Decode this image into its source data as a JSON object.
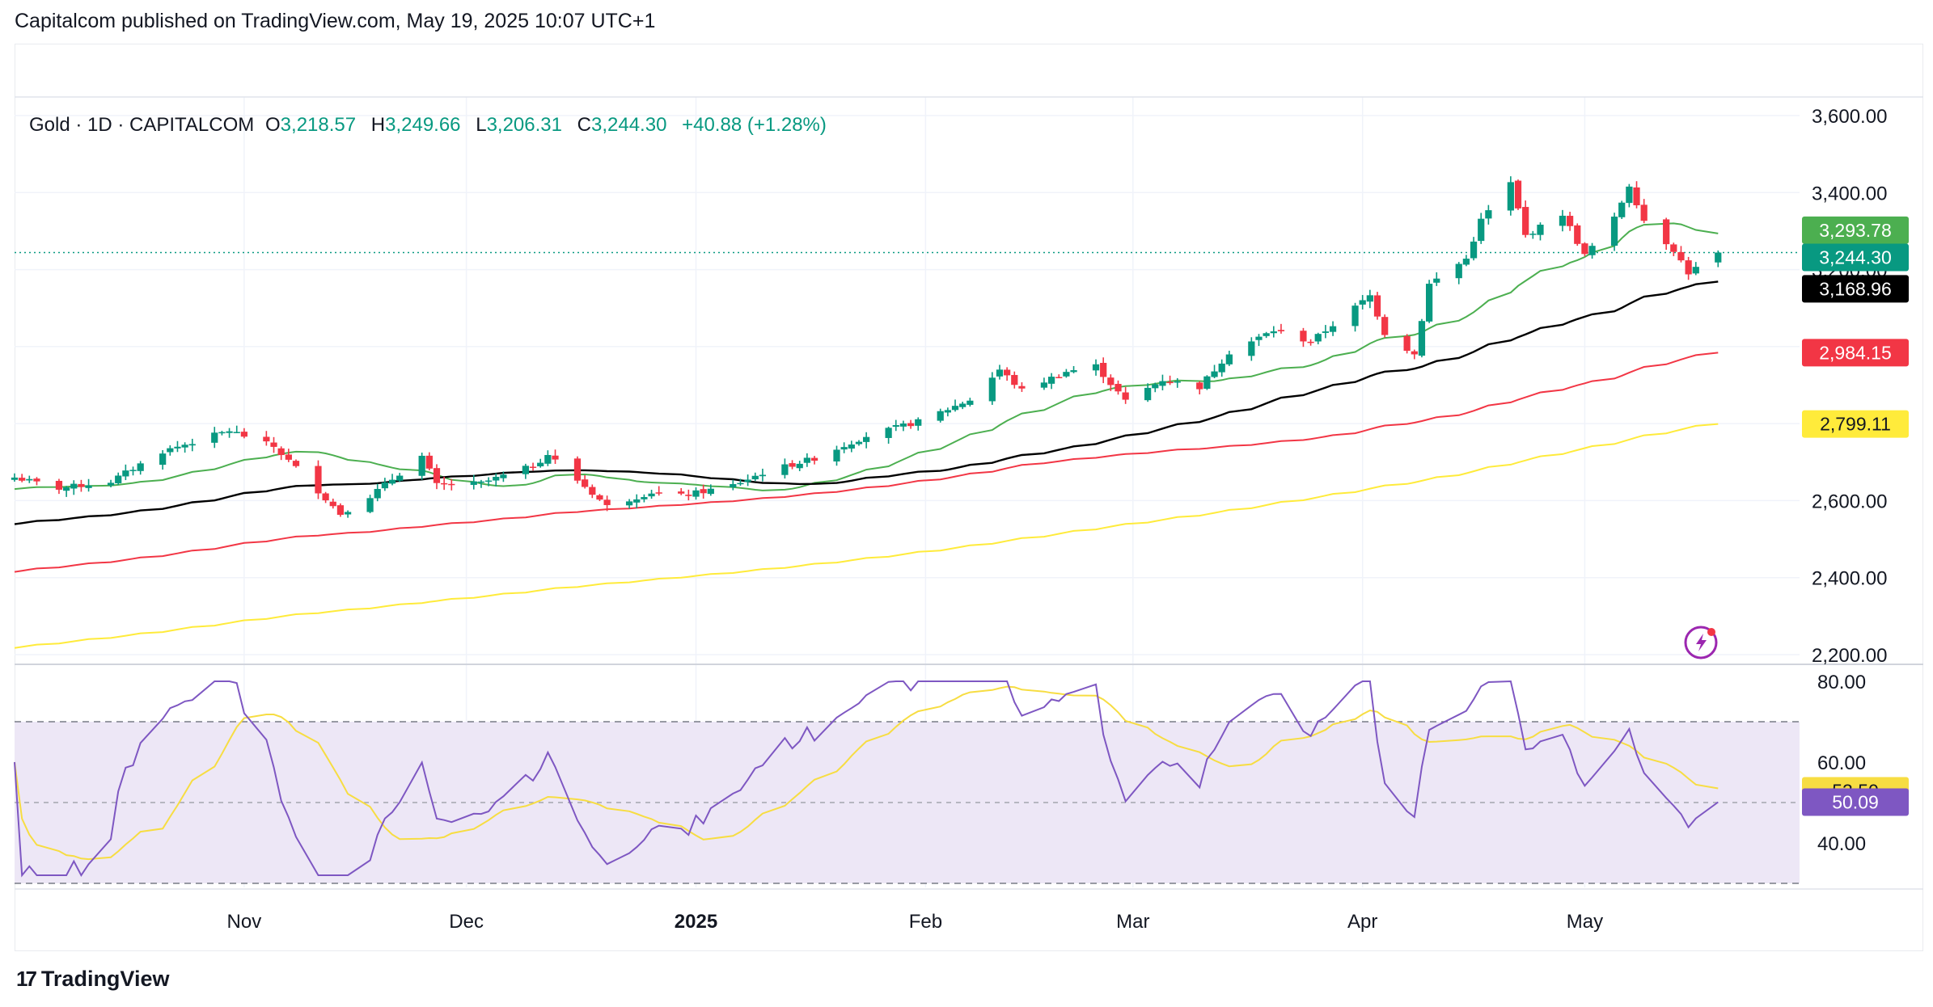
{
  "header": {
    "published": "Capitalcom published on TradingView.com, May 19, 2025 10:07 UTC+1"
  },
  "legend": {
    "symbol": "Gold · 1D · CAPITALCOM",
    "o_label": "O",
    "o_value": "3,218.57",
    "h_label": "H",
    "h_value": "3,249.66",
    "l_label": "L",
    "l_value": "3,206.31",
    "c_label": "C",
    "c_value": "3,244.30",
    "change": "+40.88 (+1.28%)"
  },
  "footer": {
    "brand": "TradingView",
    "logo_glyph": "17"
  },
  "colors": {
    "up": "#089981",
    "down": "#f23645",
    "ma20": "#4caf50",
    "ma50": "#000000",
    "ma100": "#f23645",
    "ma200": "#ffeb3b",
    "rsi": "#7e57c2",
    "rsi_ma": "#f7dd42",
    "rsi_band": "#ede7f6",
    "grid": "#f0f3fa",
    "last_price_line": "#089981"
  },
  "chart_data": [
    {
      "type": "candlestick",
      "title": "Gold · 1D · CAPITALCOM",
      "ylim": [
        2200,
        3600
      ],
      "y_ticks": [
        "2,200.00",
        "2,400.00",
        "2,600.00",
        "2,800.00",
        "3,000.00",
        "3,200.00",
        "3,400.00",
        "3,600.00"
      ],
      "x_ticks": [
        {
          "label": "Nov",
          "date": "2024-11-01",
          "bold": false
        },
        {
          "label": "Dec",
          "date": "2024-12-01",
          "bold": false
        },
        {
          "label": "2025",
          "date": "2025-01-01",
          "bold": true
        },
        {
          "label": "Feb",
          "date": "2025-02-01",
          "bold": false
        },
        {
          "label": "Mar",
          "date": "2025-03-01",
          "bold": false
        },
        {
          "label": "Apr",
          "date": "2025-04-01",
          "bold": false
        },
        {
          "label": "May",
          "date": "2025-05-01",
          "bold": false
        }
      ],
      "x_range": [
        "2024-10-01",
        "2025-05-30"
      ],
      "anchors": [
        {
          "date": "2024-10-01",
          "close": 2660
        },
        {
          "date": "2024-10-07",
          "close": 2632
        },
        {
          "date": "2024-10-14",
          "close": 2650
        },
        {
          "date": "2024-10-21",
          "close": 2728
        },
        {
          "date": "2024-10-30",
          "close": 2782
        },
        {
          "date": "2024-11-05",
          "close": 2740
        },
        {
          "date": "2024-11-08",
          "close": 2685
        },
        {
          "date": "2024-11-14",
          "close": 2566
        },
        {
          "date": "2024-11-18",
          "close": 2612
        },
        {
          "date": "2024-11-25",
          "close": 2715
        },
        {
          "date": "2024-11-27",
          "close": 2640
        },
        {
          "date": "2024-12-03",
          "close": 2645
        },
        {
          "date": "2024-12-10",
          "close": 2690
        },
        {
          "date": "2024-12-12",
          "close": 2720
        },
        {
          "date": "2024-12-18",
          "close": 2620
        },
        {
          "date": "2024-12-20",
          "close": 2585
        },
        {
          "date": "2024-12-26",
          "close": 2622
        },
        {
          "date": "2024-12-30",
          "close": 2612
        },
        {
          "date": "2025-01-06",
          "close": 2640
        },
        {
          "date": "2025-01-10",
          "close": 2672
        },
        {
          "date": "2025-01-17",
          "close": 2710
        },
        {
          "date": "2025-01-24",
          "close": 2768
        },
        {
          "date": "2025-01-31",
          "close": 2805
        },
        {
          "date": "2025-02-07",
          "close": 2862
        },
        {
          "date": "2025-02-11",
          "close": 2940
        },
        {
          "date": "2025-02-14",
          "close": 2886
        },
        {
          "date": "2025-02-20",
          "close": 2935
        },
        {
          "date": "2025-02-24",
          "close": 2950
        },
        {
          "date": "2025-02-28",
          "close": 2858
        },
        {
          "date": "2025-03-05",
          "close": 2914
        },
        {
          "date": "2025-03-10",
          "close": 2895
        },
        {
          "date": "2025-03-14",
          "close": 2985
        },
        {
          "date": "2025-03-20",
          "close": 3042
        },
        {
          "date": "2025-03-25",
          "close": 3012
        },
        {
          "date": "2025-04-02",
          "close": 3132
        },
        {
          "date": "2025-04-04",
          "close": 3035
        },
        {
          "date": "2025-04-08",
          "close": 2980
        },
        {
          "date": "2025-04-10",
          "close": 3162
        },
        {
          "date": "2025-04-15",
          "close": 3228
        },
        {
          "date": "2025-04-17",
          "close": 3328
        },
        {
          "date": "2025-04-21",
          "close": 3424
        },
        {
          "date": "2025-04-23",
          "close": 3288
        },
        {
          "date": "2025-04-28",
          "close": 3345
        },
        {
          "date": "2025-05-01",
          "close": 3236
        },
        {
          "date": "2025-05-05",
          "close": 3332
        },
        {
          "date": "2025-05-07",
          "close": 3420
        },
        {
          "date": "2025-05-09",
          "close": 3328
        },
        {
          "date": "2025-05-13",
          "close": 3252
        },
        {
          "date": "2025-05-15",
          "close": 3192
        },
        {
          "date": "2025-05-16",
          "close": 3203.42
        },
        {
          "date": "2025-05-19",
          "close": 3244.3
        }
      ],
      "last_candle": {
        "date": "2025-05-19",
        "open": 3218.57,
        "high": 3249.66,
        "low": 3206.31,
        "close": 3244.3
      },
      "moving_averages": [
        {
          "period": 20,
          "color": "#4caf50",
          "last_value": 3293.78,
          "label": "3,293.78"
        },
        {
          "period": 50,
          "color": "#000000",
          "last_value": 3168.96,
          "label": "3,168.96"
        },
        {
          "period": 100,
          "color": "#f23645",
          "last_value": 2984.15,
          "label": "2,984.15"
        },
        {
          "period": 200,
          "color": "#ffeb3b",
          "last_value": 2799.11,
          "label": "2,799.11"
        }
      ],
      "last_price": {
        "value": 3244.3,
        "label": "3,244.30"
      }
    },
    {
      "type": "line",
      "ylim": [
        30,
        80
      ],
      "y_ticks": [
        "40.00",
        "60.00",
        "80.00"
      ],
      "band": [
        30,
        70
      ],
      "midline": 50,
      "series": [
        {
          "period": 14,
          "color": "#7e57c2",
          "last_value": 50.09,
          "label": "50.09"
        },
        {
          "period": 14,
          "color": "#f7dd42",
          "last_value": 53.5,
          "label": "53.50"
        }
      ]
    }
  ]
}
